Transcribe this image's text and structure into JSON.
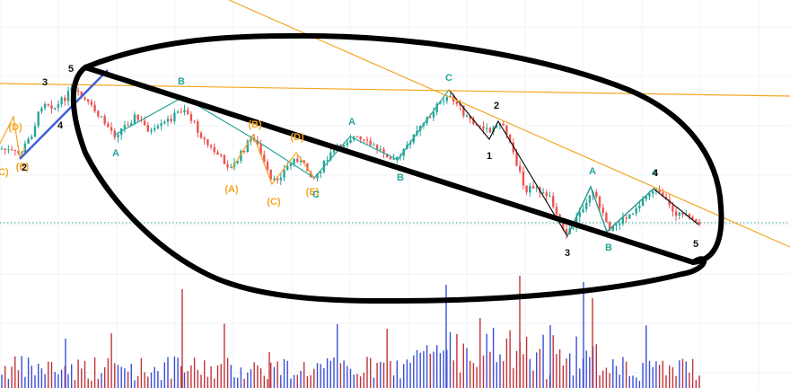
{
  "colors": {
    "background": "#ffffff",
    "grid": "#f0f3f7",
    "candle_up": "#26a69a",
    "candle_down": "#ef5350",
    "volume_up": "#3b4fd8",
    "volume_down": "#c0343b",
    "wave_orange": "#f5a623",
    "wave_teal": "#26a69a",
    "wave_black": "#111111",
    "trend_blue": "#3f5fd9",
    "trend_orange": "#f5a623",
    "price_line": "#26a69a",
    "annotation": "#000000"
  },
  "chart_data": {
    "type": "candlestick",
    "grid": true,
    "wave_labels": [
      {
        "text": "(C)",
        "group": "orange",
        "i": 0
      },
      {
        "text": "(D)",
        "group": "orange",
        "i": 3
      },
      {
        "text": "(E)",
        "group": "orange",
        "i": 6
      },
      {
        "text": "2",
        "group": "black",
        "i": 6
      },
      {
        "text": "3",
        "group": "black",
        "i": 12
      },
      {
        "text": "4",
        "group": "black",
        "i": 18
      },
      {
        "text": "5",
        "group": "black",
        "i": 20
      },
      {
        "text": "A",
        "group": "teal",
        "i": 34
      },
      {
        "text": "B",
        "group": "teal",
        "i": 54
      },
      {
        "text": "(A)",
        "group": "orange",
        "i": 69
      },
      {
        "text": "(B)",
        "group": "orange",
        "i": 76
      },
      {
        "text": "(C)",
        "group": "orange",
        "i": 81
      },
      {
        "text": "(D)",
        "group": "orange",
        "i": 88
      },
      {
        "text": "(E)",
        "group": "orange",
        "i": 94
      },
      {
        "text": "C",
        "group": "teal",
        "i": 94
      },
      {
        "text": "A",
        "group": "teal",
        "i": 105
      },
      {
        "text": "B",
        "group": "teal",
        "i": 119
      },
      {
        "text": "C",
        "group": "teal",
        "i": 134
      },
      {
        "text": "2",
        "group": "black",
        "i": 148
      },
      {
        "text": "1",
        "group": "black",
        "i": 146
      },
      {
        "text": "3",
        "group": "black",
        "i": 170
      },
      {
        "text": "A",
        "group": "teal",
        "i": 177
      },
      {
        "text": "B",
        "group": "teal",
        "i": 182
      },
      {
        "text": "4",
        "group": "teal",
        "i": 196
      },
      {
        "text": "4",
        "group": "black",
        "i": 196
      },
      {
        "text": "5",
        "group": "black",
        "i": 208
      }
    ]
  }
}
